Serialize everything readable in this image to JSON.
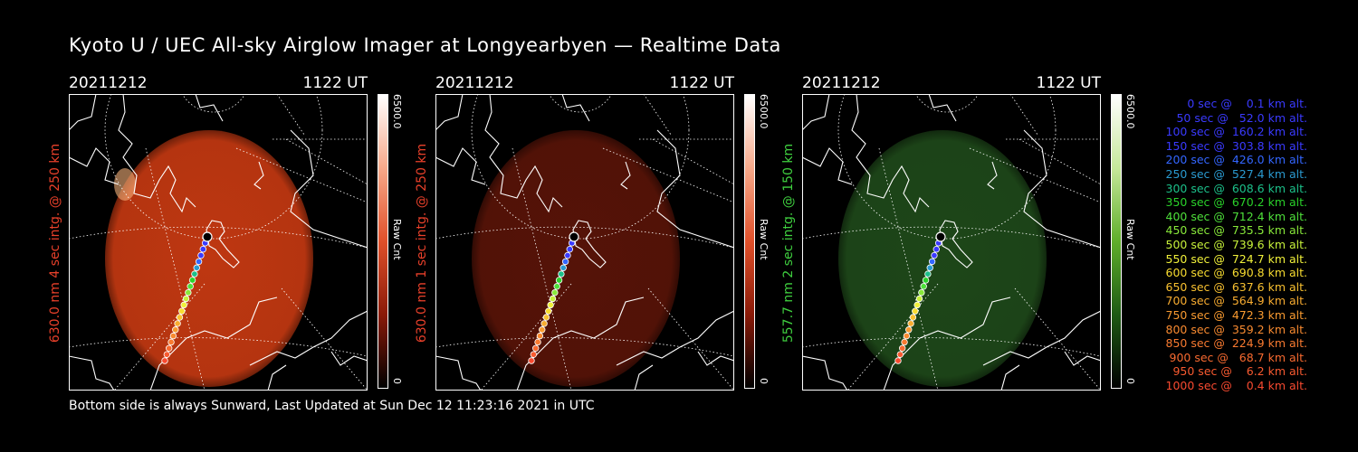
{
  "title": "Kyoto U / UEC All-sky Airglow Imager at Longyearbyen — Realtime Data",
  "footer": "Bottom side is always Sunward, Last Updated at Sun Dec 12 11:23:16 2021 in UTC",
  "panels": [
    {
      "date": "20211212",
      "time": "1122 UT",
      "label": "630.0 nm 4 sec intg. @ 250 km",
      "label_color": "#e8402a",
      "cbar_max": "6500.0",
      "cbar_min": "0",
      "cbar_unit": "Raw Cnt",
      "glow": "#c83a12",
      "glow_opacity": 0.95,
      "cbar_colors": [
        "#000000",
        "#8a1a08",
        "#e0502a",
        "#f7a98a",
        "#ffffff"
      ]
    },
    {
      "date": "20211212",
      "time": "1122 UT",
      "label": "630.0 nm 1 sec intg. @ 250 km",
      "label_color": "#e8402a",
      "cbar_max": "6500.0",
      "cbar_min": "0",
      "cbar_unit": "Raw Cnt",
      "glow": "#5a1408",
      "glow_opacity": 0.95,
      "cbar_colors": [
        "#000000",
        "#8a1a08",
        "#e0502a",
        "#f7a98a",
        "#ffffff"
      ]
    },
    {
      "date": "20211212",
      "time": "1122 UT",
      "label": "557.7 nm 2 sec intg. @ 150 km",
      "label_color": "#3fcf3f",
      "cbar_max": "6500.0",
      "cbar_min": "0",
      "cbar_unit": "Raw Cnt",
      "glow": "#1f4a1a",
      "glow_opacity": 0.95,
      "cbar_colors": [
        "#000000",
        "#1e5a14",
        "#5fae2a",
        "#c6e89a",
        "#ffffff"
      ]
    }
  ],
  "legend": [
    {
      "text": "   0 sec @    0.1 km alt.",
      "color": "#3a3aff"
    },
    {
      "text": "  50 sec @   52.0 km alt.",
      "color": "#3a3aff"
    },
    {
      "text": " 100 sec @  160.2 km alt.",
      "color": "#3a3aff"
    },
    {
      "text": " 150 sec @  303.8 km alt.",
      "color": "#3a3aff"
    },
    {
      "text": " 200 sec @  426.0 km alt.",
      "color": "#3366ff"
    },
    {
      "text": " 250 sec @  527.4 km alt.",
      "color": "#2a9ad0"
    },
    {
      "text": " 300 sec @  608.6 km alt.",
      "color": "#1cc08a"
    },
    {
      "text": " 350 sec @  670.2 km alt.",
      "color": "#2ad22a"
    },
    {
      "text": " 400 sec @  712.4 km alt.",
      "color": "#4ee03a"
    },
    {
      "text": " 450 sec @  735.5 km alt.",
      "color": "#88e83a"
    },
    {
      "text": " 500 sec @  739.6 km alt.",
      "color": "#c6f03a"
    },
    {
      "text": " 550 sec @  724.7 km alt.",
      "color": "#f0f03a"
    },
    {
      "text": " 600 sec @  690.8 km alt.",
      "color": "#f8dc30"
    },
    {
      "text": " 650 sec @  637.6 km alt.",
      "color": "#f8c030"
    },
    {
      "text": " 700 sec @  564.9 km alt.",
      "color": "#f8ac30"
    },
    {
      "text": " 750 sec @  472.3 km alt.",
      "color": "#f89a30"
    },
    {
      "text": " 800 sec @  359.2 km alt.",
      "color": "#f88a30"
    },
    {
      "text": " 850 sec @  224.9 km alt.",
      "color": "#f87a30"
    },
    {
      "text": " 900 sec @   68.7 km alt.",
      "color": "#f86a30"
    },
    {
      "text": " 950 sec @    6.2 km alt.",
      "color": "#f85a30"
    },
    {
      "text": "1000 sec @    0.4 km alt.",
      "color": "#f84a30"
    }
  ]
}
